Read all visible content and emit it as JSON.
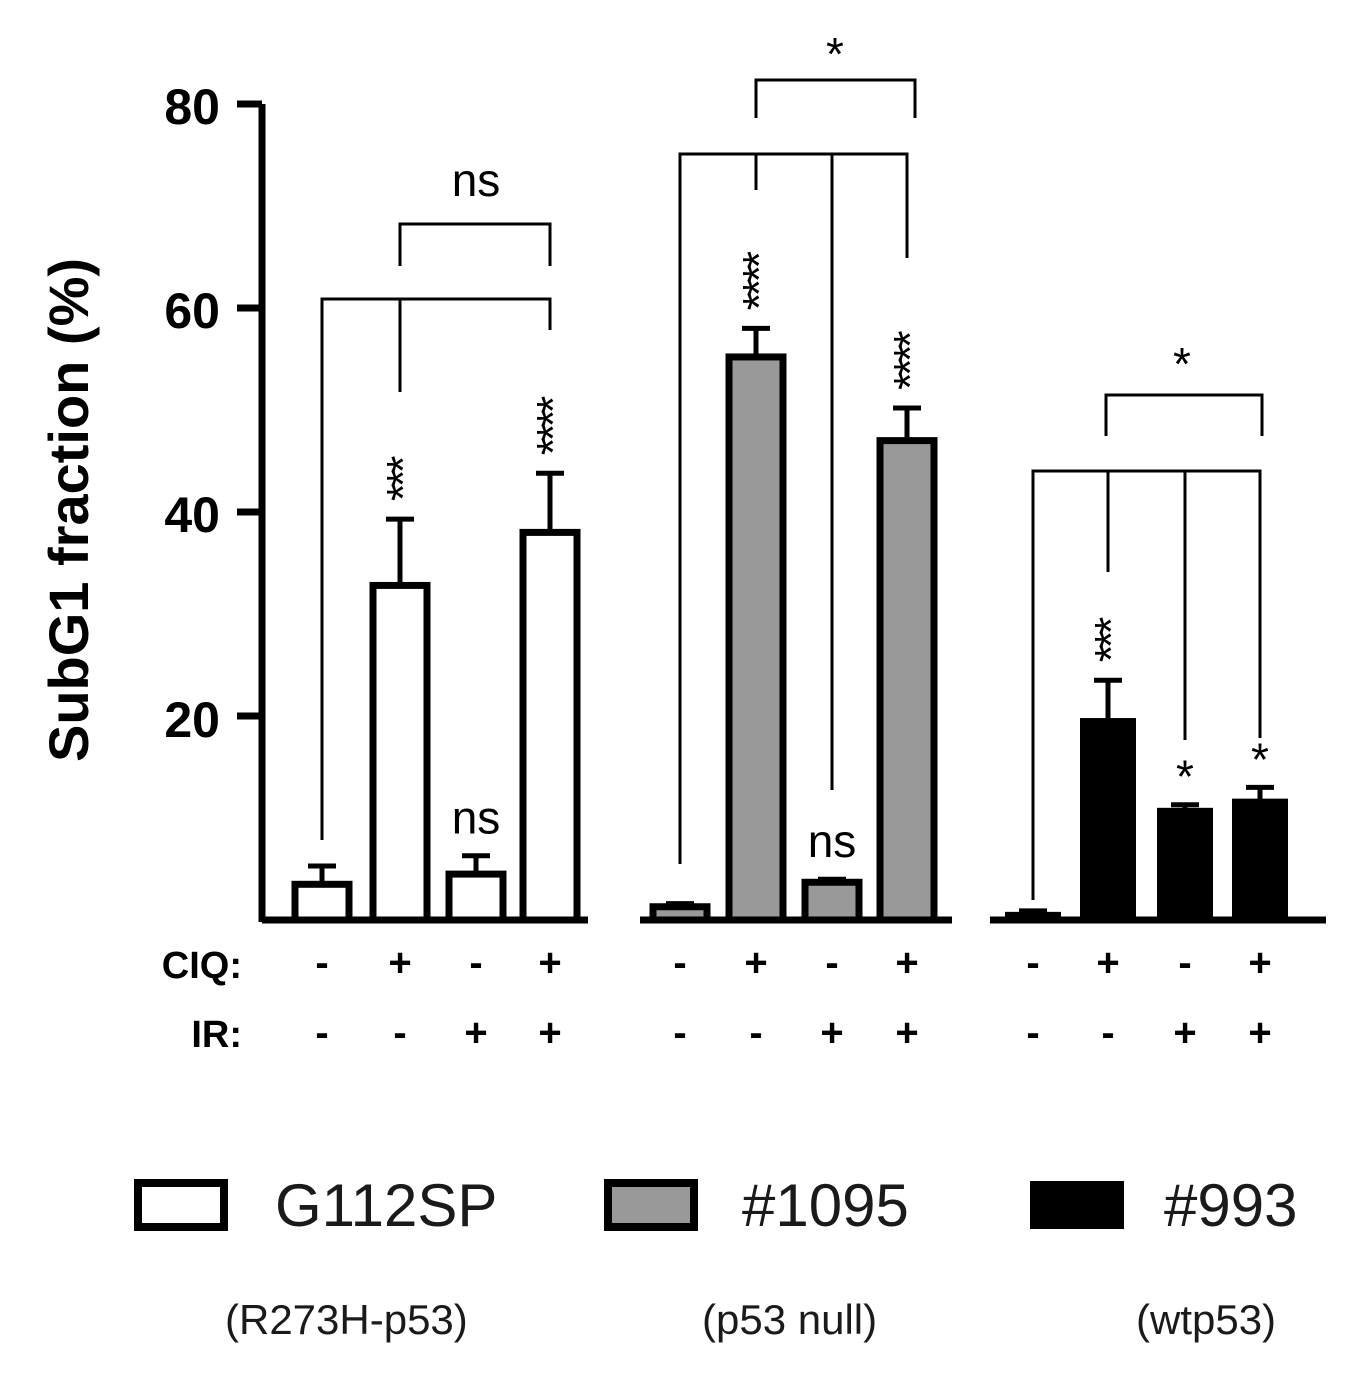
{
  "chart_data": {
    "type": "bar",
    "title": "",
    "xlabel": "",
    "ylabel": "SubG1 fraction (%)",
    "ylim": [
      0,
      80
    ],
    "yticks": [
      "20",
      "40",
      "60",
      "80"
    ],
    "row_labels": {
      "ciq": "CIQ:",
      "ir": "IR:"
    },
    "colors": {
      "G112SP": "#ffffff",
      "#1095": "#999999",
      "#993": "#000000",
      "stroke": "#000000"
    },
    "groups": [
      {
        "name": "G112SP",
        "genotype": "(R273H-p53)",
        "bars": [
          {
            "ciq": "-",
            "ir": "-",
            "value": 3.5,
            "error": 1.8,
            "sig": ""
          },
          {
            "ciq": "+",
            "ir": "-",
            "value": 32.8,
            "error": 6.5,
            "sig": "***"
          },
          {
            "ciq": "-",
            "ir": "+",
            "value": 4.5,
            "error": 1.8,
            "sig": "ns"
          },
          {
            "ciq": "+",
            "ir": "+",
            "value": 38.0,
            "error": 5.8,
            "sig": "****"
          }
        ],
        "brackets": [
          {
            "label": "ns"
          }
        ]
      },
      {
        "name": "#1095",
        "genotype": "(p53 null)",
        "bars": [
          {
            "ciq": "-",
            "ir": "-",
            "value": 1.3,
            "error": 0.3,
            "sig": ""
          },
          {
            "ciq": "+",
            "ir": "-",
            "value": 55.2,
            "error": 2.8,
            "sig": "****"
          },
          {
            "ciq": "-",
            "ir": "+",
            "value": 3.7,
            "error": 0.3,
            "sig": "ns"
          },
          {
            "ciq": "+",
            "ir": "+",
            "value": 47.0,
            "error": 3.2,
            "sig": "****"
          }
        ],
        "brackets": [
          {
            "label": "*"
          }
        ]
      },
      {
        "name": "#993",
        "genotype": "(wtp53)",
        "bars": [
          {
            "ciq": "-",
            "ir": "-",
            "value": 0.7,
            "error": 0.2,
            "sig": ""
          },
          {
            "ciq": "+",
            "ir": "-",
            "value": 19.7,
            "error": 3.8,
            "sig": "***"
          },
          {
            "ciq": "-",
            "ir": "+",
            "value": 10.9,
            "error": 0.4,
            "sig": "*"
          },
          {
            "ciq": "+",
            "ir": "+",
            "value": 11.8,
            "error": 1.2,
            "sig": "*"
          }
        ],
        "brackets": [
          {
            "label": "*"
          }
        ]
      }
    ],
    "legend": [
      "G112SP",
      "#1095",
      "#993"
    ]
  }
}
